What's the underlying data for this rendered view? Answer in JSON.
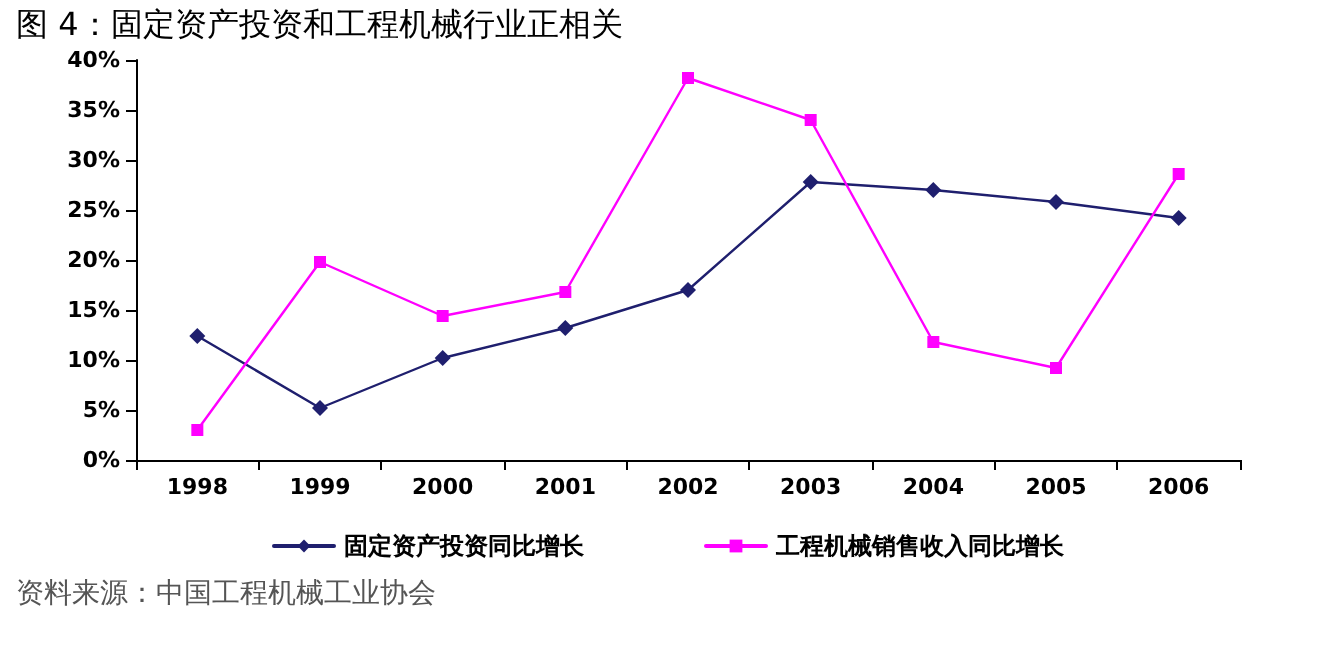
{
  "chart_data": {
    "type": "line",
    "title": "图 4：固定资产投资和工程机械行业正相关",
    "categories": [
      "1998",
      "1999",
      "2000",
      "2001",
      "2002",
      "2003",
      "2004",
      "2005",
      "2006"
    ],
    "series": [
      {
        "name": "固定资产投资同比增长",
        "color": "#1f1f6e",
        "marker": "diamond",
        "values": [
          12.4,
          5.2,
          10.2,
          13.2,
          17,
          27.8,
          27,
          25.8,
          24.2
        ]
      },
      {
        "name": "工程机械销售收入同比增长",
        "color": "#ff00ff",
        "marker": "square",
        "values": [
          3,
          19.8,
          14.4,
          16.8,
          38.2,
          34,
          11.8,
          9.2,
          28.6
        ]
      }
    ],
    "ylim": [
      0,
      40
    ],
    "yticks": [
      {
        "value": 0,
        "label": "0%"
      },
      {
        "value": 5,
        "label": "5%"
      },
      {
        "value": 10,
        "label": "10%"
      },
      {
        "value": 15,
        "label": "15%"
      },
      {
        "value": 20,
        "label": "20%"
      },
      {
        "value": 25,
        "label": "25%"
      },
      {
        "value": 30,
        "label": "30%"
      },
      {
        "value": 35,
        "label": "35%"
      },
      {
        "value": 40,
        "label": "40%"
      }
    ],
    "grid": false,
    "legend": "bottom",
    "line_style": "solid",
    "annotations": [
      "资料来源：中国工程机械工业协会"
    ]
  }
}
